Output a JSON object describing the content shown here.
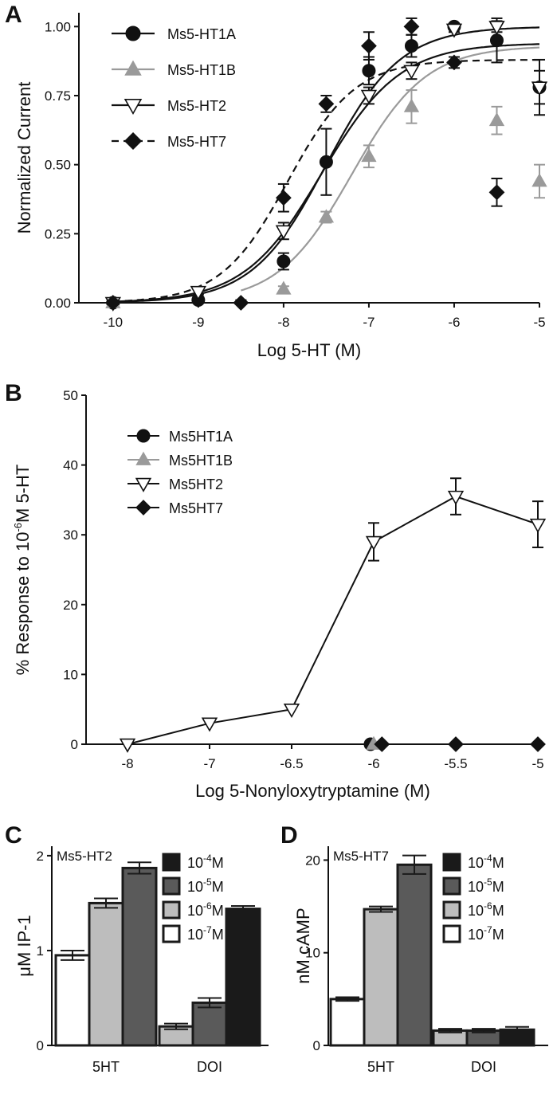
{
  "chart_data": [
    {
      "panel": "A",
      "type": "scatter",
      "xlabel": "Log 5-HT (M)",
      "ylabel": "Normalized Current",
      "xlim": [
        -10.4,
        -5
      ],
      "ylim": [
        0,
        1.05
      ],
      "xticks": [
        "-10",
        "-9",
        "-8",
        "-7",
        "-6",
        "-5"
      ],
      "yticks": [
        "0.00",
        "0.25",
        "0.50",
        "0.75",
        "1.00"
      ],
      "legend_position": "top-left",
      "series": [
        {
          "name": "Ms5-HT1A",
          "marker": "circle",
          "color": "#111111",
          "line": "solid",
          "fit": {
            "ec50_log": -7.5,
            "hill": 1.0,
            "top": 1.0
          },
          "points": [
            {
              "x": -10,
              "y": 0.0,
              "err": 0.01
            },
            {
              "x": -9,
              "y": 0.01,
              "err": 0.01
            },
            {
              "x": -8,
              "y": 0.15,
              "err": 0.03
            },
            {
              "x": -7.5,
              "y": 0.51,
              "err": 0.12
            },
            {
              "x": -7,
              "y": 0.84,
              "err": 0.05
            },
            {
              "x": -6.5,
              "y": 0.93,
              "err": 0.04
            },
            {
              "x": -6,
              "y": 1.0,
              "err": 0.01
            },
            {
              "x": -5.5,
              "y": 0.95,
              "err": 0.08
            },
            {
              "x": -5,
              "y": 0.78,
              "err": 0.1
            }
          ]
        },
        {
          "name": "Ms5-HT1B",
          "marker": "triangle-up",
          "color": "#9a9a9a",
          "line": "solid",
          "fit": {
            "ec50_log": -7.2,
            "hill": 1.0,
            "top": 0.93
          },
          "points": [
            {
              "x": -10,
              "y": 0.0,
              "err": 0.01
            },
            {
              "x": -8,
              "y": 0.05,
              "err": 0.01
            },
            {
              "x": -7.5,
              "y": 0.31,
              "err": 0.02
            },
            {
              "x": -7,
              "y": 0.53,
              "err": 0.04
            },
            {
              "x": -6.5,
              "y": 0.71,
              "err": 0.06
            },
            {
              "x": -5.5,
              "y": 0.66,
              "err": 0.05
            },
            {
              "x": -5,
              "y": 0.44,
              "err": 0.06
            }
          ]
        },
        {
          "name": "Ms5-HT2",
          "marker": "triangle-down-open",
          "color": "#111111",
          "line": "solid",
          "fit": {
            "ec50_log": -7.55,
            "hill": 0.95,
            "top": 0.94
          },
          "points": [
            {
              "x": -10,
              "y": 0.0,
              "err": 0.01
            },
            {
              "x": -9,
              "y": 0.04,
              "err": 0.01
            },
            {
              "x": -8,
              "y": 0.26,
              "err": 0.03
            },
            {
              "x": -7,
              "y": 0.75,
              "err": 0.03
            },
            {
              "x": -6.5,
              "y": 0.84,
              "err": 0.03
            },
            {
              "x": -6,
              "y": 0.99,
              "err": 0.01
            },
            {
              "x": -5.5,
              "y": 1.0,
              "err": 0.02
            },
            {
              "x": -5,
              "y": 0.78,
              "err": 0.06
            }
          ]
        },
        {
          "name": "Ms5-HT7",
          "marker": "diamond",
          "color": "#111111",
          "line": "dashed",
          "fit": {
            "ec50_log": -7.95,
            "hill": 1.1,
            "top": 0.88
          },
          "points": [
            {
              "x": -10,
              "y": 0.0,
              "err": 0.01
            },
            {
              "x": -8.5,
              "y": 0.0,
              "err": 0.01
            },
            {
              "x": -8,
              "y": 0.38,
              "err": 0.05
            },
            {
              "x": -7.5,
              "y": 0.72,
              "err": 0.03
            },
            {
              "x": -7,
              "y": 0.93,
              "err": 0.05
            },
            {
              "x": -6.5,
              "y": 1.0,
              "err": 0.03
            },
            {
              "x": -6,
              "y": 0.87,
              "err": 0.02
            },
            {
              "x": -5.5,
              "y": 0.4,
              "err": 0.05
            }
          ]
        }
      ]
    },
    {
      "panel": "B",
      "type": "line",
      "xlabel": "Log 5-Nonyloxytryptamine (M)",
      "ylabel_parts": [
        "% Response to 10",
        "-6",
        "M 5-HT"
      ],
      "xlim": [
        -8,
        -5
      ],
      "ylim": [
        0,
        50
      ],
      "xticks": [
        "-8",
        "-7",
        "-6.5",
        "-6",
        "-5.5",
        "-5"
      ],
      "xtick_values": [
        -8,
        -7,
        -6.5,
        -6,
        -5.5,
        -5
      ],
      "yticks": [
        "0",
        "10",
        "20",
        "30",
        "40",
        "50"
      ],
      "legend_position": "top-left",
      "series": [
        {
          "name": "Ms5HT1A",
          "marker": "circle",
          "color": "#111111",
          "connected": false,
          "points": [
            {
              "x": -6,
              "y": 0
            }
          ]
        },
        {
          "name": "Ms5HT1B",
          "marker": "triangle-up",
          "color": "#9a9a9a",
          "connected": false,
          "points": [
            {
              "x": -6,
              "y": 0
            }
          ]
        },
        {
          "name": "Ms5HT2",
          "marker": "triangle-down-open",
          "color": "#111111",
          "connected": true,
          "points": [
            {
              "x": -8,
              "y": 0
            },
            {
              "x": -7,
              "y": 3
            },
            {
              "x": -6.5,
              "y": 5
            },
            {
              "x": -6,
              "y": 29,
              "err": 2.7
            },
            {
              "x": -5.5,
              "y": 35.5,
              "err": 2.6
            },
            {
              "x": -5,
              "y": 31.5,
              "err": 3.3
            }
          ]
        },
        {
          "name": "Ms5HT7",
          "marker": "diamond",
          "color": "#111111",
          "connected": false,
          "points": [
            {
              "x": -5.95,
              "y": 0
            },
            {
              "x": -5.5,
              "y": 0
            },
            {
              "x": -5,
              "y": 0
            }
          ]
        }
      ]
    },
    {
      "panel": "C",
      "type": "bar",
      "inset_label": "Ms5-HT2",
      "ylabel": "μM IP-1",
      "ylim": [
        0,
        2.1
      ],
      "yticks": [
        "0",
        "1",
        "2"
      ],
      "categories": [
        "5HT",
        "DOI"
      ],
      "legend": [
        {
          "label": "10",
          "sup": "-4",
          "unit": "M",
          "color": "#1a1a1a"
        },
        {
          "label": "10",
          "sup": "-5",
          "unit": "M",
          "color": "#5a5a5a"
        },
        {
          "label": "10",
          "sup": "-6",
          "unit": "M",
          "color": "#bdbdbd"
        },
        {
          "label": "10",
          "sup": "-7",
          "unit": "M",
          "color": "#ffffff"
        }
      ],
      "groups": [
        {
          "category": "5HT",
          "bars": [
            {
              "conc": "1e-7",
              "value": 0.95,
              "err": 0.05,
              "color": "#ffffff"
            },
            {
              "conc": "1e-6",
              "value": 1.5,
              "err": 0.05,
              "color": "#bdbdbd"
            },
            {
              "conc": "1e-5",
              "value": 1.87,
              "err": 0.06,
              "color": "#5a5a5a"
            }
          ]
        },
        {
          "category": "DOI",
          "bars": [
            {
              "conc": "1e-6",
              "value": 0.2,
              "err": 0.03,
              "color": "#bdbdbd"
            },
            {
              "conc": "1e-5",
              "value": 0.45,
              "err": 0.05,
              "color": "#5a5a5a"
            },
            {
              "conc": "1e-4",
              "value": 1.44,
              "err": 0.03,
              "color": "#1a1a1a"
            }
          ]
        }
      ]
    },
    {
      "panel": "D",
      "type": "bar",
      "inset_label": "Ms5-HT7",
      "ylabel": "nM cAMP",
      "ylim": [
        0,
        21.5
      ],
      "yticks": [
        "0",
        "10",
        "20"
      ],
      "categories": [
        "5HT",
        "DOI"
      ],
      "legend": [
        {
          "label": "10",
          "sup": "-4",
          "unit": "M",
          "color": "#1a1a1a"
        },
        {
          "label": "10",
          "sup": "-5",
          "unit": "M",
          "color": "#5a5a5a"
        },
        {
          "label": "10",
          "sup": "-6",
          "unit": "M",
          "color": "#bdbdbd"
        },
        {
          "label": "10",
          "sup": "-7",
          "unit": "M",
          "color": "#ffffff"
        }
      ],
      "groups": [
        {
          "category": "5HT",
          "bars": [
            {
              "conc": "1e-7",
              "value": 5.0,
              "err": 0.2,
              "color": "#ffffff"
            },
            {
              "conc": "1e-6",
              "value": 14.7,
              "err": 0.3,
              "color": "#bdbdbd"
            },
            {
              "conc": "1e-5",
              "value": 19.5,
              "err": 1.0,
              "color": "#5a5a5a"
            }
          ]
        },
        {
          "category": "DOI",
          "bars": [
            {
              "conc": "1e-6",
              "value": 1.6,
              "err": 0.2,
              "color": "#bdbdbd"
            },
            {
              "conc": "1e-5",
              "value": 1.6,
              "err": 0.2,
              "color": "#5a5a5a"
            },
            {
              "conc": "1e-4",
              "value": 1.7,
              "err": 0.3,
              "color": "#1a1a1a"
            }
          ]
        }
      ]
    }
  ]
}
